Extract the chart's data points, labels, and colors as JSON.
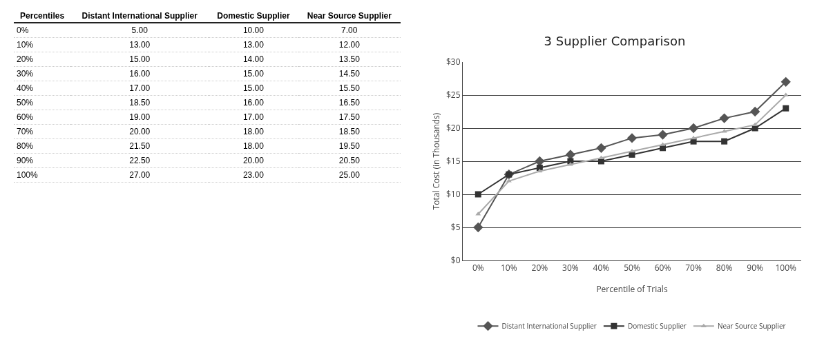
{
  "chart_data": [
    {
      "type": "heatmap",
      "ylabel": "Percentiles",
      "categories": [
        "Distant International Supplier",
        "Domestic Supplier",
        "Near Source Supplier"
      ],
      "y_categories": [
        "0%",
        "10%",
        "20%",
        "30%",
        "40%",
        "50%",
        "60%",
        "70%",
        "80%",
        "90%",
        "100%"
      ],
      "cells": [
        [
          5,
          10,
          7
        ],
        [
          13,
          13,
          12
        ],
        [
          15,
          14,
          13.5
        ],
        [
          16,
          15,
          14.5
        ],
        [
          17,
          15,
          15.5
        ],
        [
          18.5,
          16,
          16.5
        ],
        [
          19,
          17,
          17.5
        ],
        [
          20,
          18,
          18.5
        ],
        [
          21.5,
          18,
          19.5
        ],
        [
          22.5,
          20,
          20.5
        ],
        [
          27,
          23,
          25
        ]
      ],
      "cell_labels": [
        [
          "5.00",
          "10.00",
          "7.00"
        ],
        [
          "13.00",
          "13.00",
          "12.00"
        ],
        [
          "15.00",
          "14.00",
          "13.50"
        ],
        [
          "16.00",
          "15.00",
          "14.50"
        ],
        [
          "17.00",
          "15.00",
          "15.50"
        ],
        [
          "18.50",
          "16.00",
          "16.50"
        ],
        [
          "19.00",
          "17.00",
          "17.50"
        ],
        [
          "20.00",
          "18.00",
          "18.50"
        ],
        [
          "21.50",
          "18.00",
          "19.50"
        ],
        [
          "22.50",
          "20.00",
          "20.50"
        ],
        [
          "27.00",
          "23.00",
          "25.00"
        ]
      ]
    },
    {
      "type": "line",
      "title": "3 Supplier Comparison",
      "xlabel": "Percentile of Trials",
      "ylabel": "Total Cost (in Thousands)",
      "categories": [
        "0%",
        "10%",
        "20%",
        "30%",
        "40%",
        "50%",
        "60%",
        "70%",
        "80%",
        "90%",
        "100%"
      ],
      "series": [
        {
          "name": "Distant International Supplier",
          "color": "#555555",
          "marker": "diamond",
          "values": [
            5,
            13,
            15,
            16,
            17,
            18.5,
            19,
            20,
            21.5,
            22.5,
            27
          ]
        },
        {
          "name": "Domestic Supplier",
          "color": "#333333",
          "marker": "square",
          "values": [
            10,
            13,
            14,
            15,
            15,
            16,
            17,
            18,
            18,
            20,
            23
          ]
        },
        {
          "name": "Near Source Supplier",
          "color": "#aaaaaa",
          "marker": "triangle",
          "values": [
            7,
            12,
            13.5,
            14.5,
            15.5,
            16.5,
            17.5,
            18.5,
            19.5,
            20.5,
            25
          ]
        }
      ],
      "ylim": [
        0,
        30
      ],
      "yticks": [
        {
          "value": 0,
          "label": "$0"
        },
        {
          "value": 5,
          "label": "$5"
        },
        {
          "value": 10,
          "label": "$10"
        },
        {
          "value": 15,
          "label": "$15"
        },
        {
          "value": 20,
          "label": "$20"
        },
        {
          "value": 25,
          "label": "$25"
        },
        {
          "value": 30,
          "label": "$30"
        }
      ],
      "grid": "y",
      "legend": "bottom",
      "line_style": "solid"
    }
  ]
}
